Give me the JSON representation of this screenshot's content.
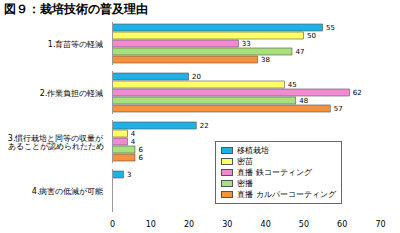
{
  "chart_data": {
    "type": "bar",
    "title": "図９：栽培技術の普及理由",
    "orientation": "horizontal",
    "categories": [
      "1.育苗等の軽減",
      "2.作業負担の軽減",
      "3.慣行栽培と同等の収量が\nあることが認められたため",
      "4.病害の低減が可能"
    ],
    "series": [
      {
        "name": "移植栽培",
        "color": "#1fb0e6",
        "values": [
          55,
          20,
          22,
          3
        ]
      },
      {
        "name": "密苗",
        "color": "#ffff66",
        "values": [
          50,
          45,
          4,
          null
        ]
      },
      {
        "name": "直播 鉄コーティング",
        "color": "#f28ad2",
        "values": [
          33,
          62,
          4,
          null
        ]
      },
      {
        "name": "密播",
        "color": "#a8e07c",
        "values": [
          47,
          48,
          6,
          null
        ]
      },
      {
        "name": "直播 カルパーコーティング",
        "color": "#f5923e",
        "values": [
          38,
          57,
          6,
          null
        ]
      }
    ],
    "xlim": [
      0,
      70
    ],
    "xticks": [
      0,
      10,
      20,
      30,
      40,
      50,
      60,
      70
    ],
    "grid": false,
    "data_labels": true,
    "legend": "lower right"
  }
}
